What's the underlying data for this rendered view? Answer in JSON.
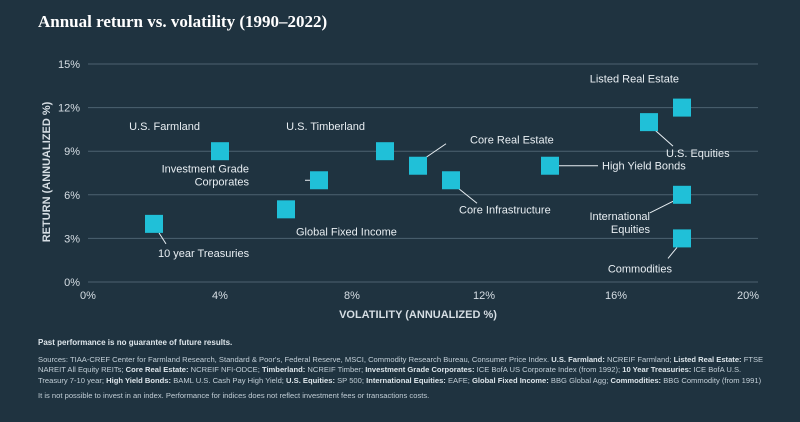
{
  "chart_data": {
    "type": "scatter",
    "title": "Annual return vs. volatility (1990–2022)",
    "xlabel": "VOLATILITY (ANNUALIZED %)",
    "ylabel": "RETURN (ANNUALIZED %)",
    "xlim": [
      0,
      20
    ],
    "ylim": [
      0,
      15
    ],
    "x_ticks": [
      "0%",
      "4%",
      "8%",
      "12%",
      "16%",
      "20%"
    ],
    "y_ticks": [
      "0%",
      "3%",
      "6%",
      "9%",
      "12%",
      "15%"
    ],
    "grid": "horizontal",
    "marker_color": "#20c0d8",
    "points": [
      {
        "label": "U.S. Farmland",
        "x": 4.0,
        "y": 9.0
      },
      {
        "label": "Listed Real Estate",
        "x": 18.0,
        "y": 12.0
      },
      {
        "label": "U.S. Equities",
        "x": 17.0,
        "y": 11.0
      },
      {
        "label": "U.S. Timberland",
        "x": 9.0,
        "y": 9.0
      },
      {
        "label": "Core Real Estate",
        "x": 10.0,
        "y": 8.0
      },
      {
        "label": "High Yield Bonds",
        "x": 14.0,
        "y": 8.0
      },
      {
        "label": "Investment Grade Corporates",
        "x": 7.0,
        "y": 7.0
      },
      {
        "label": "Core Infrastructure",
        "x": 11.0,
        "y": 7.0
      },
      {
        "label": "International Equities",
        "x": 18.0,
        "y": 6.0
      },
      {
        "label": "Global Fixed Income",
        "x": 6.0,
        "y": 5.0
      },
      {
        "label": "10 year Treasuries",
        "x": 2.0,
        "y": 4.0
      },
      {
        "label": "Commodities",
        "x": 18.0,
        "y": 3.0
      }
    ]
  },
  "notes": {
    "past_performance": "Past performance is no guarantee of future results.",
    "sources_intro": "Sources: TIAA-CREF Center for Farmland Research, Standard & Poor's, Federal Reserve, MSCI, Commodity Research Bureau, Consumer Price Index.",
    "sources": [
      {
        "name": "U.S. Farmland:",
        "text": "NCREIF Farmland;"
      },
      {
        "name": "Listed Real Estate:",
        "text": "FTSE NAREIT All Equity REITs;"
      },
      {
        "name": "Core Real Estate:",
        "text": "NCREIF NFI-ODCE;"
      },
      {
        "name": "Timberland:",
        "text": "NCREIF Timber;"
      },
      {
        "name": "Investment Grade Corporates:",
        "text": "ICE BofA US Corporate Index (from 1992);"
      },
      {
        "name": "10 Year Treasuries:",
        "text": "ICE BofA U.S. Treasury 7-10 year;"
      },
      {
        "name": "High Yield Bonds:",
        "text": "BAML U.S. Cash Pay High Yield;"
      },
      {
        "name": "U.S. Equities:",
        "text": "SP 500;"
      },
      {
        "name": "International Equities:",
        "text": "EAFE;"
      },
      {
        "name": "Global Fixed Income:",
        "text": "BBG Global Agg;"
      },
      {
        "name": "Commodities:",
        "text": "BBG Commodity (from 1991)"
      }
    ],
    "disclaimer": "It is not possible to invest in an index. Performance for indices does not reflect investment fees or transactions costs."
  }
}
